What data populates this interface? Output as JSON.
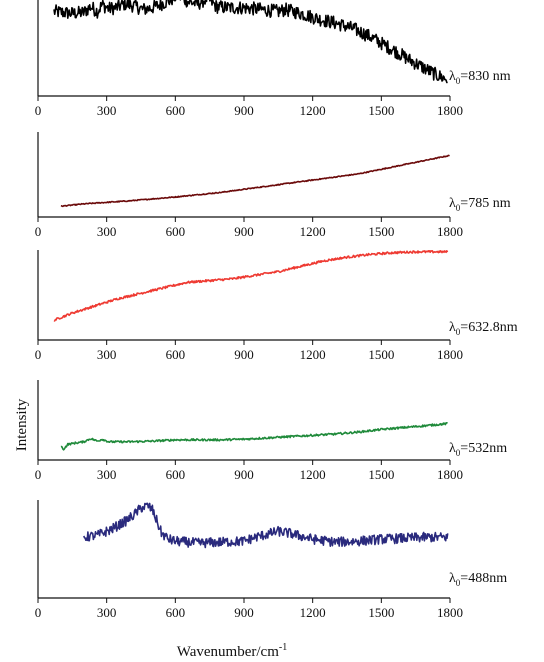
{
  "figure": {
    "xlabel": "Wavenumber/cm",
    "xlabel_superscript": "-1",
    "ylabel": "Intensity"
  },
  "chart_data": [
    {
      "type": "line",
      "label_prefix": "λ",
      "label_subscript": "0",
      "label_suffix": "=830 nm",
      "color": "#000000",
      "noise": 0.07,
      "xlim": [
        0,
        1800
      ],
      "ylim": [
        0,
        1
      ],
      "xticks": [
        0,
        300,
        600,
        900,
        1200,
        1500,
        1800
      ],
      "x": [
        70,
        150,
        200,
        230,
        260,
        280,
        310,
        340,
        380,
        420,
        460,
        500,
        540,
        580,
        610,
        630,
        660,
        700,
        740,
        780,
        830,
        900,
        980,
        1050,
        1080,
        1150,
        1230,
        1300,
        1380,
        1450,
        1500,
        1560,
        1620,
        1680,
        1740,
        1790
      ],
      "y": [
        0.88,
        0.86,
        0.87,
        0.93,
        0.88,
        0.95,
        0.91,
        0.92,
        0.96,
        0.94,
        0.9,
        0.92,
        0.96,
        1.0,
        1.05,
        1.02,
        0.98,
        0.96,
        1.02,
        0.93,
        0.92,
        0.92,
        0.9,
        0.88,
        0.9,
        0.86,
        0.8,
        0.76,
        0.7,
        0.62,
        0.55,
        0.47,
        0.38,
        0.3,
        0.22,
        0.17
      ]
    },
    {
      "type": "line",
      "label_prefix": "λ",
      "label_subscript": "0",
      "label_suffix": "=785 nm",
      "color": "#6b0a0a",
      "noise": 0.006,
      "xlim": [
        0,
        1800
      ],
      "ylim": [
        0,
        1
      ],
      "xticks": [
        0,
        300,
        600,
        900,
        1200,
        1500,
        1800
      ],
      "x": [
        100,
        200,
        400,
        600,
        800,
        1000,
        1200,
        1400,
        1600,
        1800
      ],
      "y": [
        0.14,
        0.17,
        0.21,
        0.26,
        0.32,
        0.4,
        0.48,
        0.56,
        0.68,
        0.8
      ]
    },
    {
      "type": "line",
      "label_prefix": "λ",
      "label_subscript": "0",
      "label_suffix": "=632.8nm",
      "color": "#ee3a32",
      "noise": 0.012,
      "xlim": [
        0,
        1800
      ],
      "ylim": [
        0,
        1
      ],
      "xticks": [
        0,
        300,
        600,
        900,
        1200,
        1500,
        1800
      ],
      "x": [
        70,
        150,
        250,
        350,
        450,
        550,
        650,
        750,
        850,
        950,
        1050,
        1150,
        1250,
        1350,
        1450,
        1550,
        1650,
        1750,
        1790
      ],
      "y": [
        0.22,
        0.3,
        0.38,
        0.46,
        0.52,
        0.58,
        0.64,
        0.66,
        0.68,
        0.72,
        0.76,
        0.82,
        0.88,
        0.92,
        0.95,
        0.97,
        0.98,
        0.98,
        0.98
      ]
    },
    {
      "type": "line",
      "label_prefix": "λ",
      "label_subscript": "0",
      "label_suffix": "=532nm",
      "color": "#1f8a3a",
      "noise": 0.015,
      "xlim": [
        0,
        1800
      ],
      "ylim": [
        0,
        1
      ],
      "xticks": [
        0,
        300,
        600,
        900,
        1200,
        1500,
        1800
      ],
      "x": [
        100,
        110,
        130,
        160,
        200,
        230,
        260,
        280,
        310,
        350,
        400,
        500,
        600,
        700,
        800,
        900,
        1000,
        1100,
        1200,
        1300,
        1400,
        1500,
        1600,
        1700,
        1790
      ],
      "y": [
        0.22,
        0.16,
        0.24,
        0.26,
        0.28,
        0.33,
        0.29,
        0.32,
        0.28,
        0.28,
        0.28,
        0.29,
        0.31,
        0.31,
        0.31,
        0.32,
        0.34,
        0.36,
        0.38,
        0.4,
        0.43,
        0.47,
        0.5,
        0.53,
        0.56
      ]
    },
    {
      "type": "line",
      "label_prefix": "λ",
      "label_subscript": "0",
      "label_suffix": "=488nm",
      "color": "#2a2a7d",
      "noise": 0.05,
      "xlim": [
        0,
        1800
      ],
      "ylim": [
        0,
        1
      ],
      "xticks": [
        0,
        300,
        600,
        900,
        1200,
        1500,
        1800
      ],
      "x": [
        200,
        260,
        320,
        380,
        420,
        450,
        480,
        500,
        520,
        540,
        570,
        600,
        650,
        700,
        800,
        900,
        950,
        1000,
        1050,
        1100,
        1200,
        1300,
        1400,
        1500,
        1600,
        1700,
        1790
      ],
      "y": [
        0.62,
        0.64,
        0.7,
        0.78,
        0.85,
        0.92,
        0.94,
        0.9,
        0.78,
        0.66,
        0.6,
        0.58,
        0.57,
        0.56,
        0.57,
        0.58,
        0.62,
        0.65,
        0.68,
        0.66,
        0.6,
        0.57,
        0.58,
        0.6,
        0.61,
        0.62,
        0.62
      ]
    }
  ]
}
